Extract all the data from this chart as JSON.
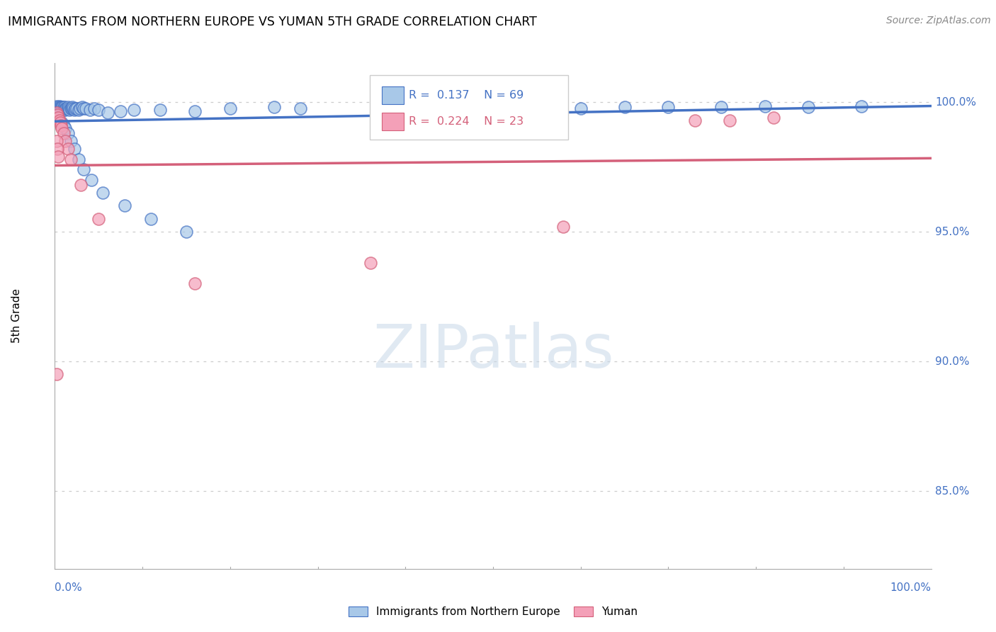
{
  "title": "IMMIGRANTS FROM NORTHERN EUROPE VS YUMAN 5TH GRADE CORRELATION CHART",
  "source": "Source: ZipAtlas.com",
  "ylabel": "5th Grade",
  "legend_blue_R": "R =  0.137",
  "legend_blue_N": "N = 69",
  "legend_pink_R": "R =  0.224",
  "legend_pink_N": "N = 23",
  "legend_blue_label": "Immigrants from Northern Europe",
  "legend_pink_label": "Yuman",
  "blue_fill": "#a8c8e8",
  "pink_fill": "#f4a0b8",
  "blue_line_color": "#4472c4",
  "pink_line_color": "#d4607a",
  "watermark_text": "ZIPatlas",
  "xlim": [
    0.0,
    1.0
  ],
  "ylim": [
    82.0,
    101.5
  ],
  "yticks": [
    100.0,
    95.0,
    90.0,
    85.0
  ],
  "ytick_labels": [
    "100.0%",
    "95.0%",
    "90.0%",
    "85.0%"
  ],
  "blue_scatter_x": [
    0.002,
    0.003,
    0.004,
    0.005,
    0.006,
    0.007,
    0.007,
    0.008,
    0.008,
    0.009,
    0.009,
    0.01,
    0.01,
    0.011,
    0.011,
    0.012,
    0.012,
    0.013,
    0.014,
    0.015,
    0.016,
    0.017,
    0.018,
    0.019,
    0.02,
    0.021,
    0.022,
    0.023,
    0.025,
    0.027,
    0.029,
    0.031,
    0.033,
    0.035,
    0.04,
    0.045,
    0.05,
    0.06,
    0.075,
    0.09,
    0.12,
    0.16,
    0.2,
    0.25,
    0.28,
    0.38,
    0.42,
    0.48,
    0.5,
    0.6,
    0.65,
    0.7,
    0.76,
    0.81,
    0.86,
    0.92,
    0.008,
    0.01,
    0.012,
    0.015,
    0.018,
    0.022,
    0.027,
    0.033,
    0.042,
    0.055,
    0.08,
    0.11,
    0.15
  ],
  "blue_scatter_y": [
    99.85,
    99.8,
    99.75,
    99.85,
    99.8,
    99.8,
    99.7,
    99.75,
    99.8,
    99.7,
    99.8,
    99.8,
    99.7,
    99.75,
    99.8,
    99.75,
    99.7,
    99.75,
    99.75,
    99.8,
    99.75,
    99.7,
    99.75,
    99.75,
    99.8,
    99.75,
    99.7,
    99.75,
    99.75,
    99.7,
    99.75,
    99.8,
    99.75,
    99.75,
    99.7,
    99.75,
    99.7,
    99.6,
    99.65,
    99.7,
    99.7,
    99.65,
    99.75,
    99.8,
    99.75,
    99.8,
    99.8,
    99.8,
    99.8,
    99.75,
    99.8,
    99.8,
    99.8,
    99.85,
    99.8,
    99.85,
    99.2,
    99.1,
    99.0,
    98.8,
    98.5,
    98.2,
    97.8,
    97.4,
    97.0,
    96.5,
    96.0,
    95.5,
    95.0
  ],
  "pink_scatter_x": [
    0.002,
    0.003,
    0.004,
    0.005,
    0.006,
    0.007,
    0.008,
    0.01,
    0.012,
    0.015,
    0.018,
    0.002,
    0.003,
    0.004,
    0.03,
    0.05,
    0.16,
    0.002,
    0.36,
    0.58,
    0.73,
    0.77,
    0.82
  ],
  "pink_scatter_y": [
    99.6,
    99.5,
    99.4,
    99.3,
    99.2,
    99.1,
    99.0,
    98.8,
    98.5,
    98.2,
    97.8,
    98.5,
    98.2,
    97.9,
    96.8,
    95.5,
    93.0,
    89.5,
    93.8,
    95.2,
    99.3,
    99.3,
    99.4
  ]
}
